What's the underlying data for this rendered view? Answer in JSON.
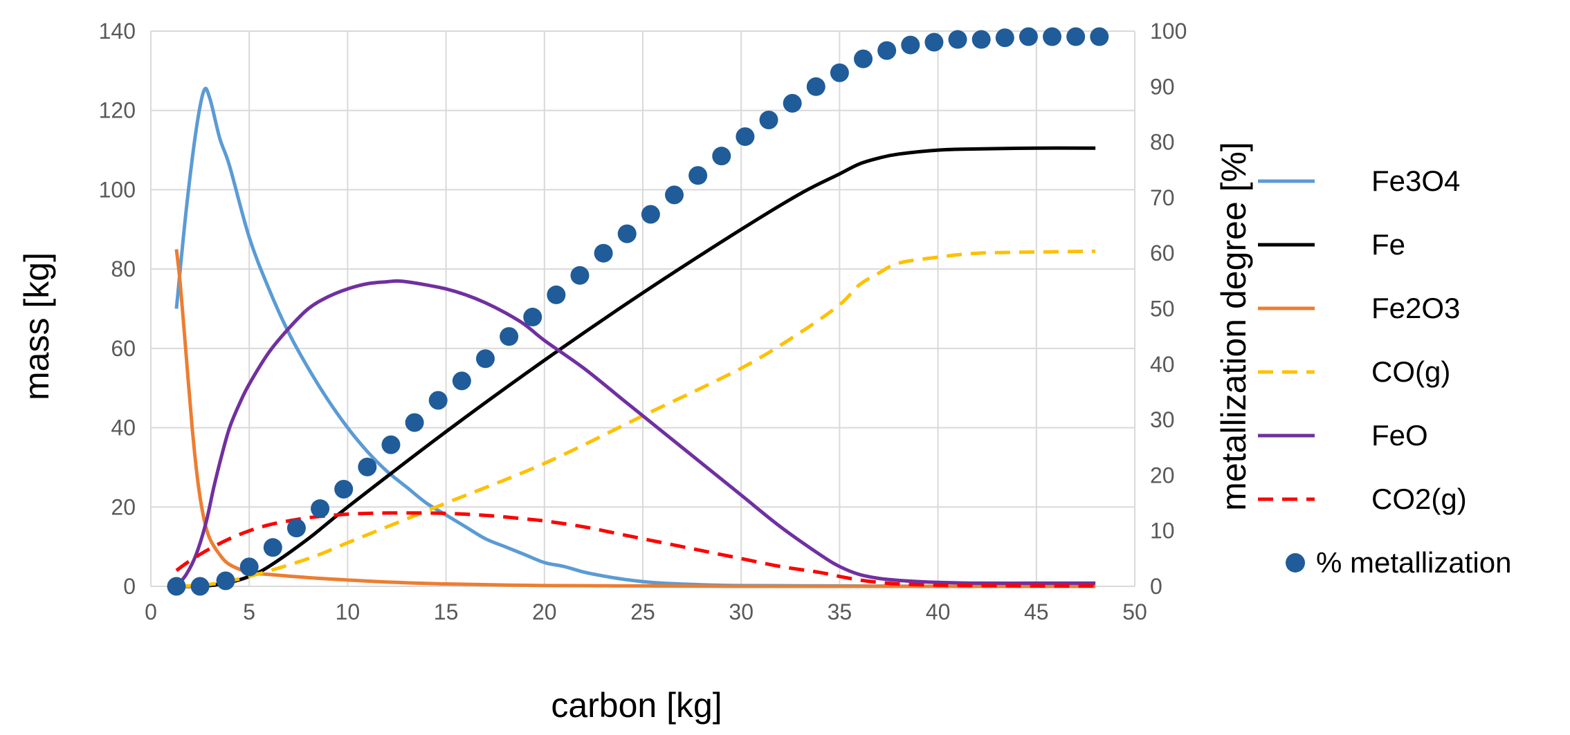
{
  "chart_data": {
    "type": "line",
    "title": "",
    "xlabel": "carbon [kg]",
    "ylabel": "mass [kg]",
    "y2label": "metallization degree [%]",
    "xlim": [
      0,
      50
    ],
    "ylim": [
      0,
      140
    ],
    "y2lim": [
      0,
      100
    ],
    "xticks": [
      0,
      5,
      10,
      15,
      20,
      25,
      30,
      35,
      40,
      45,
      50
    ],
    "yticks": [
      0,
      20,
      40,
      60,
      80,
      100,
      120,
      140
    ],
    "y2ticks": [
      0,
      10,
      20,
      30,
      40,
      50,
      60,
      70,
      80,
      90,
      100
    ],
    "grid": true,
    "legend_position": "right",
    "series": [
      {
        "name": "Fe3O4",
        "axis": "left",
        "color": "#5B9BD5",
        "dash": "solid",
        "x": [
          1.3,
          1.8,
          2.3,
          2.7,
          3.0,
          3.5,
          4.0,
          5.0,
          6.0,
          7.0,
          8.0,
          9.0,
          10.0,
          11.0,
          12.0,
          13.0,
          14.0,
          15.0,
          16.0,
          17.0,
          18.0,
          19.0,
          20.0,
          21.0,
          22.0,
          23.0,
          24.0,
          25.0,
          26.0,
          28.0,
          30.0,
          35.0,
          40.0,
          48.0
        ],
        "y": [
          70,
          95,
          115,
          125,
          123,
          113,
          106,
          88,
          75,
          64,
          55,
          47,
          40,
          34,
          29,
          25,
          21,
          18,
          15,
          12,
          10,
          8,
          6,
          5,
          3.6,
          2.6,
          1.8,
          1.2,
          0.8,
          0.4,
          0.2,
          0.1,
          0,
          0
        ]
      },
      {
        "name": "Fe",
        "axis": "left",
        "color": "#000000",
        "dash": "solid",
        "x": [
          1.3,
          2.0,
          3.0,
          4.0,
          5.0,
          6.0,
          8.0,
          10.0,
          15.0,
          20.0,
          25.0,
          30.0,
          33.0,
          35.0,
          36.0,
          37.0,
          38.0,
          40.0,
          42.0,
          45.0,
          48.0
        ],
        "y": [
          0,
          0,
          0.2,
          1,
          2.5,
          5,
          12,
          20,
          39,
          57,
          74,
          90,
          99,
          104,
          106.5,
          108,
          109,
          110,
          110.3,
          110.5,
          110.5
        ]
      },
      {
        "name": "Fe2O3",
        "axis": "left",
        "color": "#ED7D31",
        "dash": "solid",
        "x": [
          1.3,
          1.5,
          1.8,
          2.1,
          2.4,
          2.7,
          3.0,
          3.5,
          4.0,
          5.0,
          6.0,
          8.0,
          10.0,
          12.0,
          15.0,
          20.0,
          25.0,
          30.0,
          40.0,
          48.0
        ],
        "y": [
          85,
          76,
          58,
          40,
          26,
          17,
          12,
          8,
          5.5,
          3.5,
          3,
          2.2,
          1.6,
          1.1,
          0.6,
          0.2,
          0.1,
          0,
          0,
          0
        ]
      },
      {
        "name": "CO(g)",
        "axis": "left",
        "color": "#FFC000",
        "dash": "dashed",
        "x": [
          1.3,
          3.0,
          5.0,
          8.0,
          10.0,
          12.0,
          15.0,
          20.0,
          25.0,
          30.0,
          33.0,
          35.0,
          36.0,
          37.0,
          38.0,
          40.0,
          42.0,
          45.0,
          48.0
        ],
        "y": [
          0,
          0.5,
          2.5,
          7,
          11,
          15,
          21,
          31,
          43,
          55,
          64,
          71,
          76,
          79,
          81.5,
          83,
          84,
          84.3,
          84.5
        ]
      },
      {
        "name": "FeO",
        "axis": "left",
        "color": "#7030A0",
        "dash": "solid",
        "x": [
          1.3,
          1.8,
          2.3,
          2.8,
          3.2,
          3.6,
          4.0,
          4.5,
          5.0,
          6.0,
          7.0,
          8.0,
          9.0,
          10.0,
          11.0,
          12.0,
          12.5,
          13.0,
          14.0,
          15.0,
          16.0,
          17.0,
          18.0,
          19.0,
          20.0,
          22.0,
          24.0,
          26.0,
          28.0,
          30.0,
          32.0,
          34.0,
          35.0,
          36.0,
          37.0,
          38.0,
          39.0,
          40.0,
          42.0,
          45.0,
          48.0
        ],
        "y": [
          0,
          3,
          8,
          16,
          25,
          33,
          40,
          46,
          51,
          59,
          65,
          70,
          73,
          75,
          76.3,
          76.8,
          77,
          76.8,
          76,
          75,
          73.5,
          71.5,
          69,
          66,
          62,
          55,
          47,
          39,
          31,
          23,
          15,
          8,
          5,
          3,
          2,
          1.5,
          1.2,
          1,
          0.8,
          0.8,
          0.8
        ]
      },
      {
        "name": "CO2(g)",
        "axis": "left",
        "color": "#FF0000",
        "dash": "dashed",
        "x": [
          1.3,
          2.0,
          3.0,
          4.0,
          5.0,
          6.0,
          7.0,
          8.0,
          9.0,
          10.0,
          11.0,
          12.0,
          13.0,
          14.0,
          15.0,
          16.0,
          17.0,
          18.0,
          19.0,
          20.0,
          22.0,
          24.0,
          26.0,
          28.0,
          30.0,
          32.0,
          34.0,
          35.0,
          36.0,
          37.0,
          38.0,
          40.0,
          42.0,
          45.0,
          48.0
        ],
        "y": [
          4,
          6.5,
          9.5,
          12,
          14,
          15.5,
          16.5,
          17.3,
          17.8,
          18.2,
          18.4,
          18.5,
          18.5,
          18.5,
          18.4,
          18.2,
          17.9,
          17.5,
          17,
          16.5,
          15,
          13,
          11,
          9,
          7,
          5,
          3.5,
          2.5,
          1.6,
          1,
          0.6,
          0.3,
          0.2,
          0.1,
          0.1
        ]
      }
    ],
    "scatter_series": {
      "name": "% metallization",
      "axis": "right",
      "color": "#1F5C99",
      "x": [
        1.3,
        2.5,
        3.8,
        5.0,
        6.2,
        7.4,
        8.6,
        9.8,
        11.0,
        12.2,
        13.4,
        14.6,
        15.8,
        17.0,
        18.2,
        19.4,
        20.6,
        21.8,
        23.0,
        24.2,
        25.4,
        26.6,
        27.8,
        29.0,
        30.2,
        31.4,
        32.6,
        33.8,
        35.0,
        36.2,
        37.4,
        38.6,
        39.8,
        41.0,
        42.2,
        43.4,
        44.6,
        45.8,
        47.0,
        48.2
      ],
      "y": [
        0,
        0,
        1,
        3.5,
        7,
        10.5,
        14,
        17.5,
        21.5,
        25.5,
        29.5,
        33.5,
        37,
        41,
        45,
        48.5,
        52.5,
        56,
        60,
        63.5,
        67,
        70.5,
        74,
        77.5,
        81,
        84,
        87,
        90,
        92.5,
        95,
        96.5,
        97.5,
        98,
        98.5,
        98.5,
        98.8,
        99,
        99,
        99,
        99
      ]
    }
  }
}
